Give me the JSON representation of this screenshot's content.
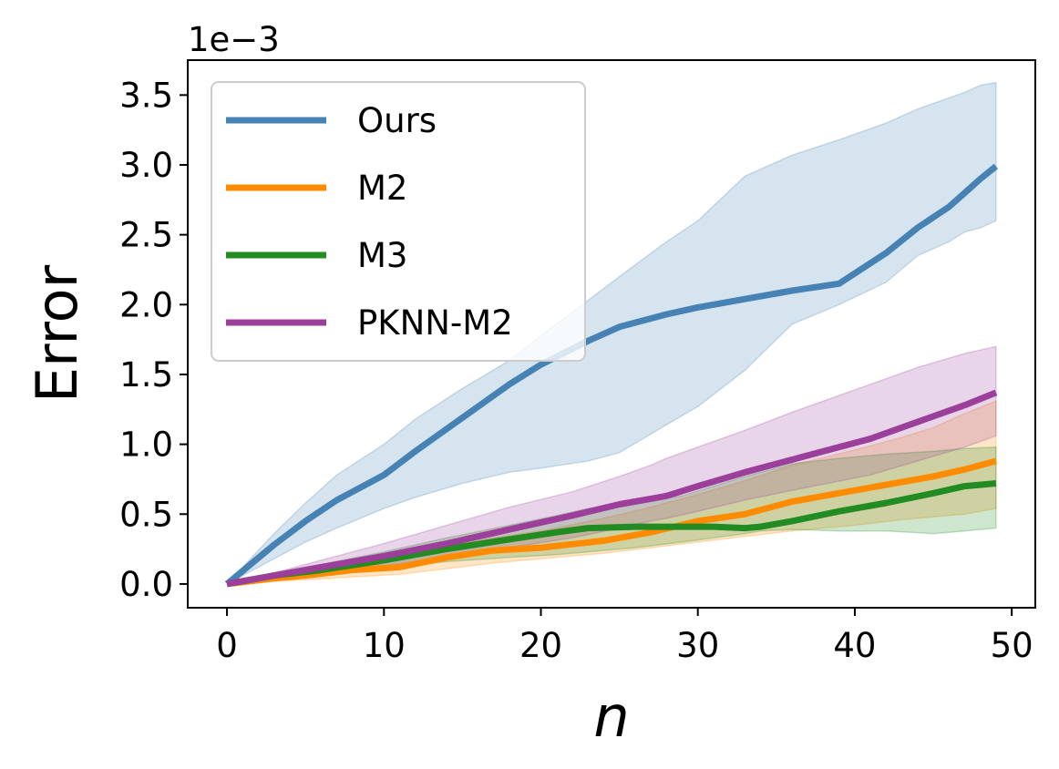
{
  "chart_data": {
    "type": "line",
    "xlabel": "n",
    "ylabel": "Error",
    "y_multiplier": "1e−3",
    "xlim": [
      -2.5,
      51.5
    ],
    "ylim": [
      -0.17,
      3.75
    ],
    "xticks": [
      0,
      10,
      20,
      30,
      40,
      50
    ],
    "xtick_labels": [
      "0",
      "10",
      "20",
      "30",
      "40",
      "50"
    ],
    "yticks": [
      0.0,
      0.5,
      1.0,
      1.5,
      2.0,
      2.5,
      3.0,
      3.5
    ],
    "ytick_labels": [
      "0.0",
      "0.5",
      "1.0",
      "1.5",
      "2.0",
      "2.5",
      "3.0",
      "3.5"
    ],
    "grid": false,
    "legend_position": "upper-left",
    "series": [
      {
        "name": "Ours",
        "color": "#4682b4",
        "x": [
          0,
          3,
          5,
          7,
          10,
          12,
          15,
          18,
          20,
          23,
          25,
          28,
          30,
          33,
          36,
          39,
          42,
          44,
          46,
          47,
          48,
          49
        ],
        "y": [
          0,
          0.28,
          0.45,
          0.6,
          0.78,
          0.95,
          1.19,
          1.43,
          1.57,
          1.74,
          1.84,
          1.93,
          1.98,
          2.04,
          2.1,
          2.15,
          2.37,
          2.55,
          2.7,
          2.8,
          2.9,
          2.99
        ],
        "upper": [
          0,
          0.36,
          0.58,
          0.78,
          1.0,
          1.18,
          1.4,
          1.6,
          1.78,
          2.03,
          2.2,
          2.45,
          2.6,
          2.92,
          3.07,
          3.18,
          3.3,
          3.4,
          3.48,
          3.52,
          3.57,
          3.59
        ],
        "lower": [
          0,
          0.18,
          0.3,
          0.4,
          0.54,
          0.62,
          0.72,
          0.8,
          0.83,
          0.88,
          0.94,
          1.14,
          1.27,
          1.53,
          1.86,
          2.0,
          2.16,
          2.35,
          2.45,
          2.52,
          2.55,
          2.6
        ]
      },
      {
        "name": "M2",
        "color": "#ff8c00",
        "x": [
          0,
          3,
          5,
          8,
          11,
          14,
          17,
          20,
          24,
          27,
          30,
          33,
          36,
          40,
          43,
          45,
          47,
          49
        ],
        "y": [
          0,
          0.04,
          0.06,
          0.1,
          0.12,
          0.19,
          0.24,
          0.26,
          0.31,
          0.37,
          0.45,
          0.5,
          0.59,
          0.67,
          0.73,
          0.77,
          0.82,
          0.88
        ],
        "upper": [
          0,
          0.07,
          0.11,
          0.16,
          0.21,
          0.27,
          0.33,
          0.38,
          0.47,
          0.55,
          0.64,
          0.74,
          0.85,
          0.96,
          1.05,
          1.12,
          1.22,
          1.31
        ],
        "lower": [
          0,
          0.02,
          0.03,
          0.05,
          0.07,
          0.11,
          0.15,
          0.18,
          0.22,
          0.26,
          0.3,
          0.34,
          0.38,
          0.42,
          0.46,
          0.48,
          0.5,
          0.54
        ]
      },
      {
        "name": "M3",
        "color": "#228b22",
        "x": [
          0,
          3,
          6,
          10,
          14,
          18,
          21,
          23,
          26,
          29,
          31,
          33,
          34,
          36,
          39,
          42,
          45,
          47,
          49
        ],
        "y": [
          0,
          0.06,
          0.1,
          0.17,
          0.25,
          0.32,
          0.37,
          0.4,
          0.41,
          0.41,
          0.41,
          0.4,
          0.41,
          0.45,
          0.52,
          0.58,
          0.65,
          0.7,
          0.72
        ],
        "upper": [
          0,
          0.08,
          0.14,
          0.23,
          0.33,
          0.42,
          0.49,
          0.54,
          0.58,
          0.63,
          0.7,
          0.77,
          0.8,
          0.86,
          0.9,
          0.93,
          0.95,
          0.97,
          0.98
        ],
        "lower": [
          0,
          0.04,
          0.07,
          0.11,
          0.16,
          0.19,
          0.21,
          0.23,
          0.26,
          0.3,
          0.33,
          0.36,
          0.38,
          0.39,
          0.38,
          0.38,
          0.36,
          0.38,
          0.4
        ]
      },
      {
        "name": "PKNN-M2",
        "color": "#9b3f9b",
        "x": [
          0,
          3,
          6,
          10,
          14,
          18,
          22,
          25,
          27,
          28,
          30,
          33,
          36,
          41,
          44,
          47,
          49
        ],
        "y": [
          0,
          0.06,
          0.12,
          0.2,
          0.29,
          0.39,
          0.49,
          0.57,
          0.61,
          0.63,
          0.7,
          0.8,
          0.89,
          1.04,
          1.16,
          1.28,
          1.37
        ],
        "upper": [
          0,
          0.08,
          0.17,
          0.29,
          0.42,
          0.55,
          0.66,
          0.77,
          0.85,
          0.9,
          0.98,
          1.1,
          1.23,
          1.43,
          1.55,
          1.65,
          1.7
        ],
        "lower": [
          0,
          0.04,
          0.08,
          0.13,
          0.19,
          0.26,
          0.33,
          0.4,
          0.45,
          0.47,
          0.52,
          0.6,
          0.67,
          0.78,
          0.88,
          0.98,
          1.06
        ]
      }
    ]
  }
}
